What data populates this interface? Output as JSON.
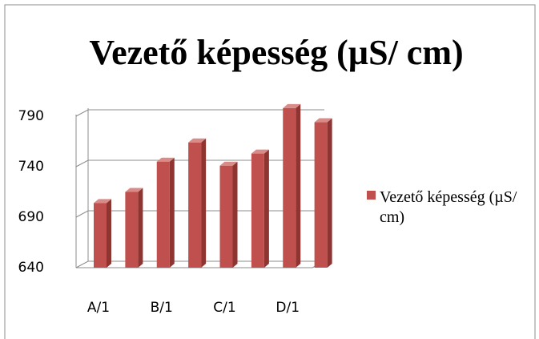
{
  "chart_data": {
    "type": "bar3d",
    "title": "Vezető képesség (µS/ cm)",
    "categories": [
      "A/1",
      null,
      "B/1",
      null,
      "C/1",
      null,
      "D/1",
      null
    ],
    "series": [
      {
        "name": "Vezető képesség (µS/ cm)",
        "color": "#c0504d",
        "values": [
          704,
          715,
          745,
          764,
          741,
          753,
          798,
          784
        ]
      }
    ],
    "ylim": [
      640,
      790
    ],
    "yticks": [
      640,
      690,
      740,
      790
    ],
    "grid": true,
    "legend": "right"
  }
}
